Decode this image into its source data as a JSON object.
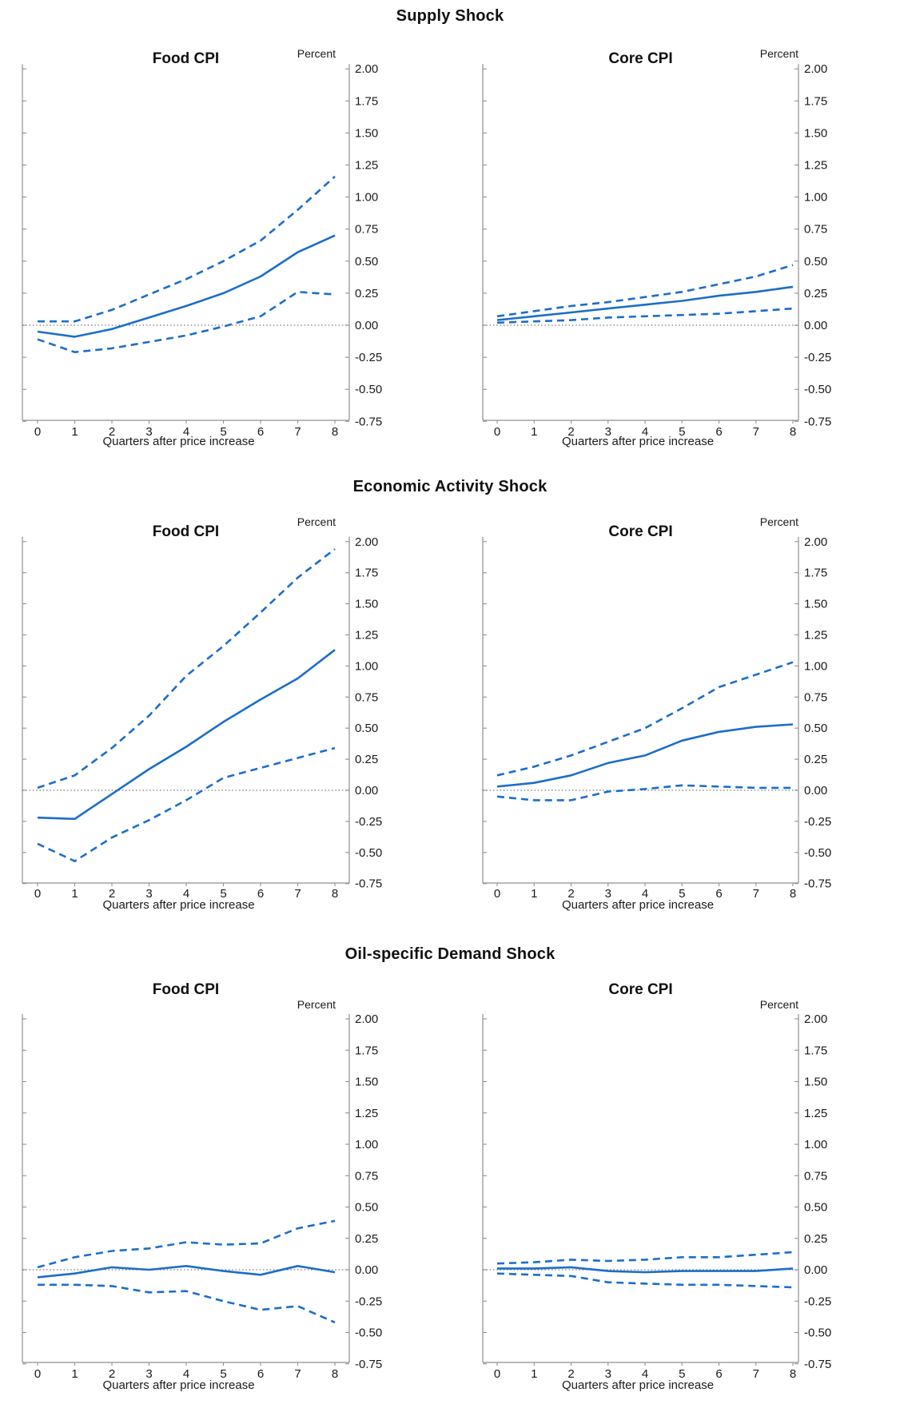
{
  "colors": {
    "line": "#1b6ec9",
    "axis": "#8f8f8f",
    "zero_line": "#5a5a5a",
    "text": "#1a1a1a"
  },
  "sections": [
    {
      "title": "Supply Shock"
    },
    {
      "title": "Economic Activity Shock"
    },
    {
      "title": "Oil-specific Demand Shock"
    }
  ],
  "chart_data": [
    {
      "type": "line",
      "section": "Supply Shock",
      "panel": "Food CPI",
      "ylabel": "Percent",
      "xlabel": "Quarters after price increase",
      "x": [
        0,
        1,
        2,
        3,
        4,
        5,
        6,
        7,
        8
      ],
      "xticks": [
        "0",
        "1",
        "2",
        "3",
        "4",
        "5",
        "6",
        "7",
        "8"
      ],
      "yticks": [
        "2.00",
        "1.75",
        "1.50",
        "1.25",
        "1.00",
        "0.75",
        "0.50",
        "0.25",
        "0.00",
        "-0.25",
        "-0.50",
        "-0.75"
      ],
      "ylim": [
        -0.75,
        2.0
      ],
      "zero_line": true,
      "legend": "none",
      "series": [
        {
          "name": "solid",
          "style": "solid",
          "values": [
            -0.05,
            -0.09,
            -0.03,
            0.06,
            0.15,
            0.25,
            0.38,
            0.57,
            0.7
          ]
        },
        {
          "name": "upper-dashed",
          "style": "dashed",
          "values": [
            0.03,
            0.03,
            0.12,
            0.24,
            0.36,
            0.5,
            0.66,
            0.9,
            1.16
          ]
        },
        {
          "name": "lower-dashed",
          "style": "dashed",
          "values": [
            -0.11,
            -0.21,
            -0.18,
            -0.13,
            -0.08,
            -0.01,
            0.07,
            0.26,
            0.24
          ]
        }
      ]
    },
    {
      "type": "line",
      "section": "Supply Shock",
      "panel": "Core CPI",
      "ylabel": "Percent",
      "xlabel": "Quarters after price increase",
      "x": [
        0,
        1,
        2,
        3,
        4,
        5,
        6,
        7,
        8
      ],
      "xticks": [
        "0",
        "1",
        "2",
        "3",
        "4",
        "5",
        "6",
        "7",
        "8"
      ],
      "yticks": [
        "2.00",
        "1.75",
        "1.50",
        "1.25",
        "1.00",
        "0.75",
        "0.50",
        "0.25",
        "0.00",
        "-0.25",
        "-0.50",
        "-0.75"
      ],
      "ylim": [
        -0.75,
        2.0
      ],
      "zero_line": true,
      "legend": "none",
      "series": [
        {
          "name": "solid",
          "style": "solid",
          "values": [
            0.04,
            0.07,
            0.1,
            0.13,
            0.16,
            0.19,
            0.23,
            0.26,
            0.3
          ]
        },
        {
          "name": "upper-dashed",
          "style": "dashed",
          "values": [
            0.07,
            0.11,
            0.15,
            0.18,
            0.22,
            0.26,
            0.32,
            0.38,
            0.47
          ]
        },
        {
          "name": "lower-dashed",
          "style": "dashed",
          "values": [
            0.02,
            0.03,
            0.04,
            0.06,
            0.07,
            0.08,
            0.09,
            0.11,
            0.13
          ]
        }
      ]
    },
    {
      "type": "line",
      "section": "Economic Activity Shock",
      "panel": "Food CPI",
      "ylabel": "Percent",
      "xlabel": "Quarters after price increase",
      "x": [
        0,
        1,
        2,
        3,
        4,
        5,
        6,
        7,
        8
      ],
      "xticks": [
        "0",
        "1",
        "2",
        "3",
        "4",
        "5",
        "6",
        "7",
        "8"
      ],
      "yticks": [
        "2.00",
        "1.75",
        "1.50",
        "1.25",
        "1.00",
        "0.75",
        "0.50",
        "0.25",
        "0.00",
        "-0.25",
        "-0.50",
        "-0.75"
      ],
      "ylim": [
        -0.75,
        2.0
      ],
      "zero_line": true,
      "legend": "none",
      "series": [
        {
          "name": "solid",
          "style": "solid",
          "values": [
            -0.22,
            -0.23,
            -0.03,
            0.17,
            0.35,
            0.55,
            0.73,
            0.9,
            1.13
          ]
        },
        {
          "name": "upper-dashed",
          "style": "dashed",
          "values": [
            0.02,
            0.12,
            0.34,
            0.6,
            0.92,
            1.16,
            1.43,
            1.71,
            1.94
          ]
        },
        {
          "name": "lower-dashed",
          "style": "dashed",
          "values": [
            -0.43,
            -0.57,
            -0.38,
            -0.24,
            -0.08,
            0.1,
            0.18,
            0.26,
            0.34
          ]
        }
      ]
    },
    {
      "type": "line",
      "section": "Economic Activity Shock",
      "panel": "Core CPI",
      "ylabel": "Percent",
      "xlabel": "Quarters after price increase",
      "x": [
        0,
        1,
        2,
        3,
        4,
        5,
        6,
        7,
        8
      ],
      "xticks": [
        "0",
        "1",
        "2",
        "3",
        "4",
        "5",
        "6",
        "7",
        "8"
      ],
      "yticks": [
        "2.00",
        "1.75",
        "1.50",
        "1.25",
        "1.00",
        "0.75",
        "0.50",
        "0.25",
        "0.00",
        "-0.25",
        "-0.50",
        "-0.75"
      ],
      "ylim": [
        -0.75,
        2.0
      ],
      "zero_line": true,
      "legend": "none",
      "series": [
        {
          "name": "solid",
          "style": "solid",
          "values": [
            0.03,
            0.06,
            0.12,
            0.22,
            0.28,
            0.4,
            0.47,
            0.51,
            0.53
          ]
        },
        {
          "name": "upper-dashed",
          "style": "dashed",
          "values": [
            0.12,
            0.19,
            0.28,
            0.39,
            0.5,
            0.66,
            0.83,
            0.93,
            1.03
          ]
        },
        {
          "name": "lower-dashed",
          "style": "dashed",
          "values": [
            -0.05,
            -0.08,
            -0.08,
            -0.01,
            0.01,
            0.04,
            0.03,
            0.02,
            0.02
          ]
        }
      ]
    },
    {
      "type": "line",
      "section": "Oil-specific Demand Shock",
      "panel": "Food CPI",
      "ylabel": "Percent",
      "xlabel": "Quarters after price increase",
      "x": [
        0,
        1,
        2,
        3,
        4,
        5,
        6,
        7,
        8
      ],
      "xticks": [
        "0",
        "1",
        "2",
        "3",
        "4",
        "5",
        "6",
        "7",
        "8"
      ],
      "yticks": [
        "2.00",
        "1.75",
        "1.50",
        "1.25",
        "1.00",
        "0.75",
        "0.50",
        "0.25",
        "0.00",
        "-0.25",
        "-0.50",
        "-0.75"
      ],
      "ylim": [
        -0.75,
        2.0
      ],
      "zero_line": true,
      "legend": "none",
      "series": [
        {
          "name": "solid",
          "style": "solid",
          "values": [
            -0.06,
            -0.03,
            0.02,
            0.0,
            0.03,
            -0.01,
            -0.04,
            0.03,
            -0.02
          ]
        },
        {
          "name": "upper-dashed",
          "style": "dashed",
          "values": [
            0.02,
            0.1,
            0.15,
            0.17,
            0.22,
            0.2,
            0.21,
            0.33,
            0.39
          ]
        },
        {
          "name": "lower-dashed",
          "style": "dashed",
          "values": [
            -0.12,
            -0.12,
            -0.13,
            -0.18,
            -0.17,
            -0.25,
            -0.32,
            -0.29,
            -0.42
          ]
        }
      ]
    },
    {
      "type": "line",
      "section": "Oil-specific Demand Shock",
      "panel": "Core CPI",
      "ylabel": "Percent",
      "xlabel": "Quarters after price increase",
      "x": [
        0,
        1,
        2,
        3,
        4,
        5,
        6,
        7,
        8
      ],
      "xticks": [
        "0",
        "1",
        "2",
        "3",
        "4",
        "5",
        "6",
        "7",
        "8"
      ],
      "yticks": [
        "2.00",
        "1.75",
        "1.50",
        "1.25",
        "1.00",
        "0.75",
        "0.50",
        "0.25",
        "0.00",
        "-0.25",
        "-0.50",
        "-0.75"
      ],
      "ylim": [
        -0.75,
        2.0
      ],
      "zero_line": true,
      "legend": "none",
      "series": [
        {
          "name": "solid",
          "style": "solid",
          "values": [
            0.01,
            0.01,
            0.02,
            -0.01,
            -0.02,
            -0.01,
            -0.01,
            -0.01,
            0.01
          ]
        },
        {
          "name": "upper-dashed",
          "style": "dashed",
          "values": [
            0.05,
            0.06,
            0.08,
            0.07,
            0.08,
            0.1,
            0.1,
            0.12,
            0.14
          ]
        },
        {
          "name": "lower-dashed",
          "style": "dashed",
          "values": [
            -0.03,
            -0.04,
            -0.05,
            -0.1,
            -0.11,
            -0.12,
            -0.12,
            -0.13,
            -0.14
          ]
        }
      ]
    }
  ]
}
